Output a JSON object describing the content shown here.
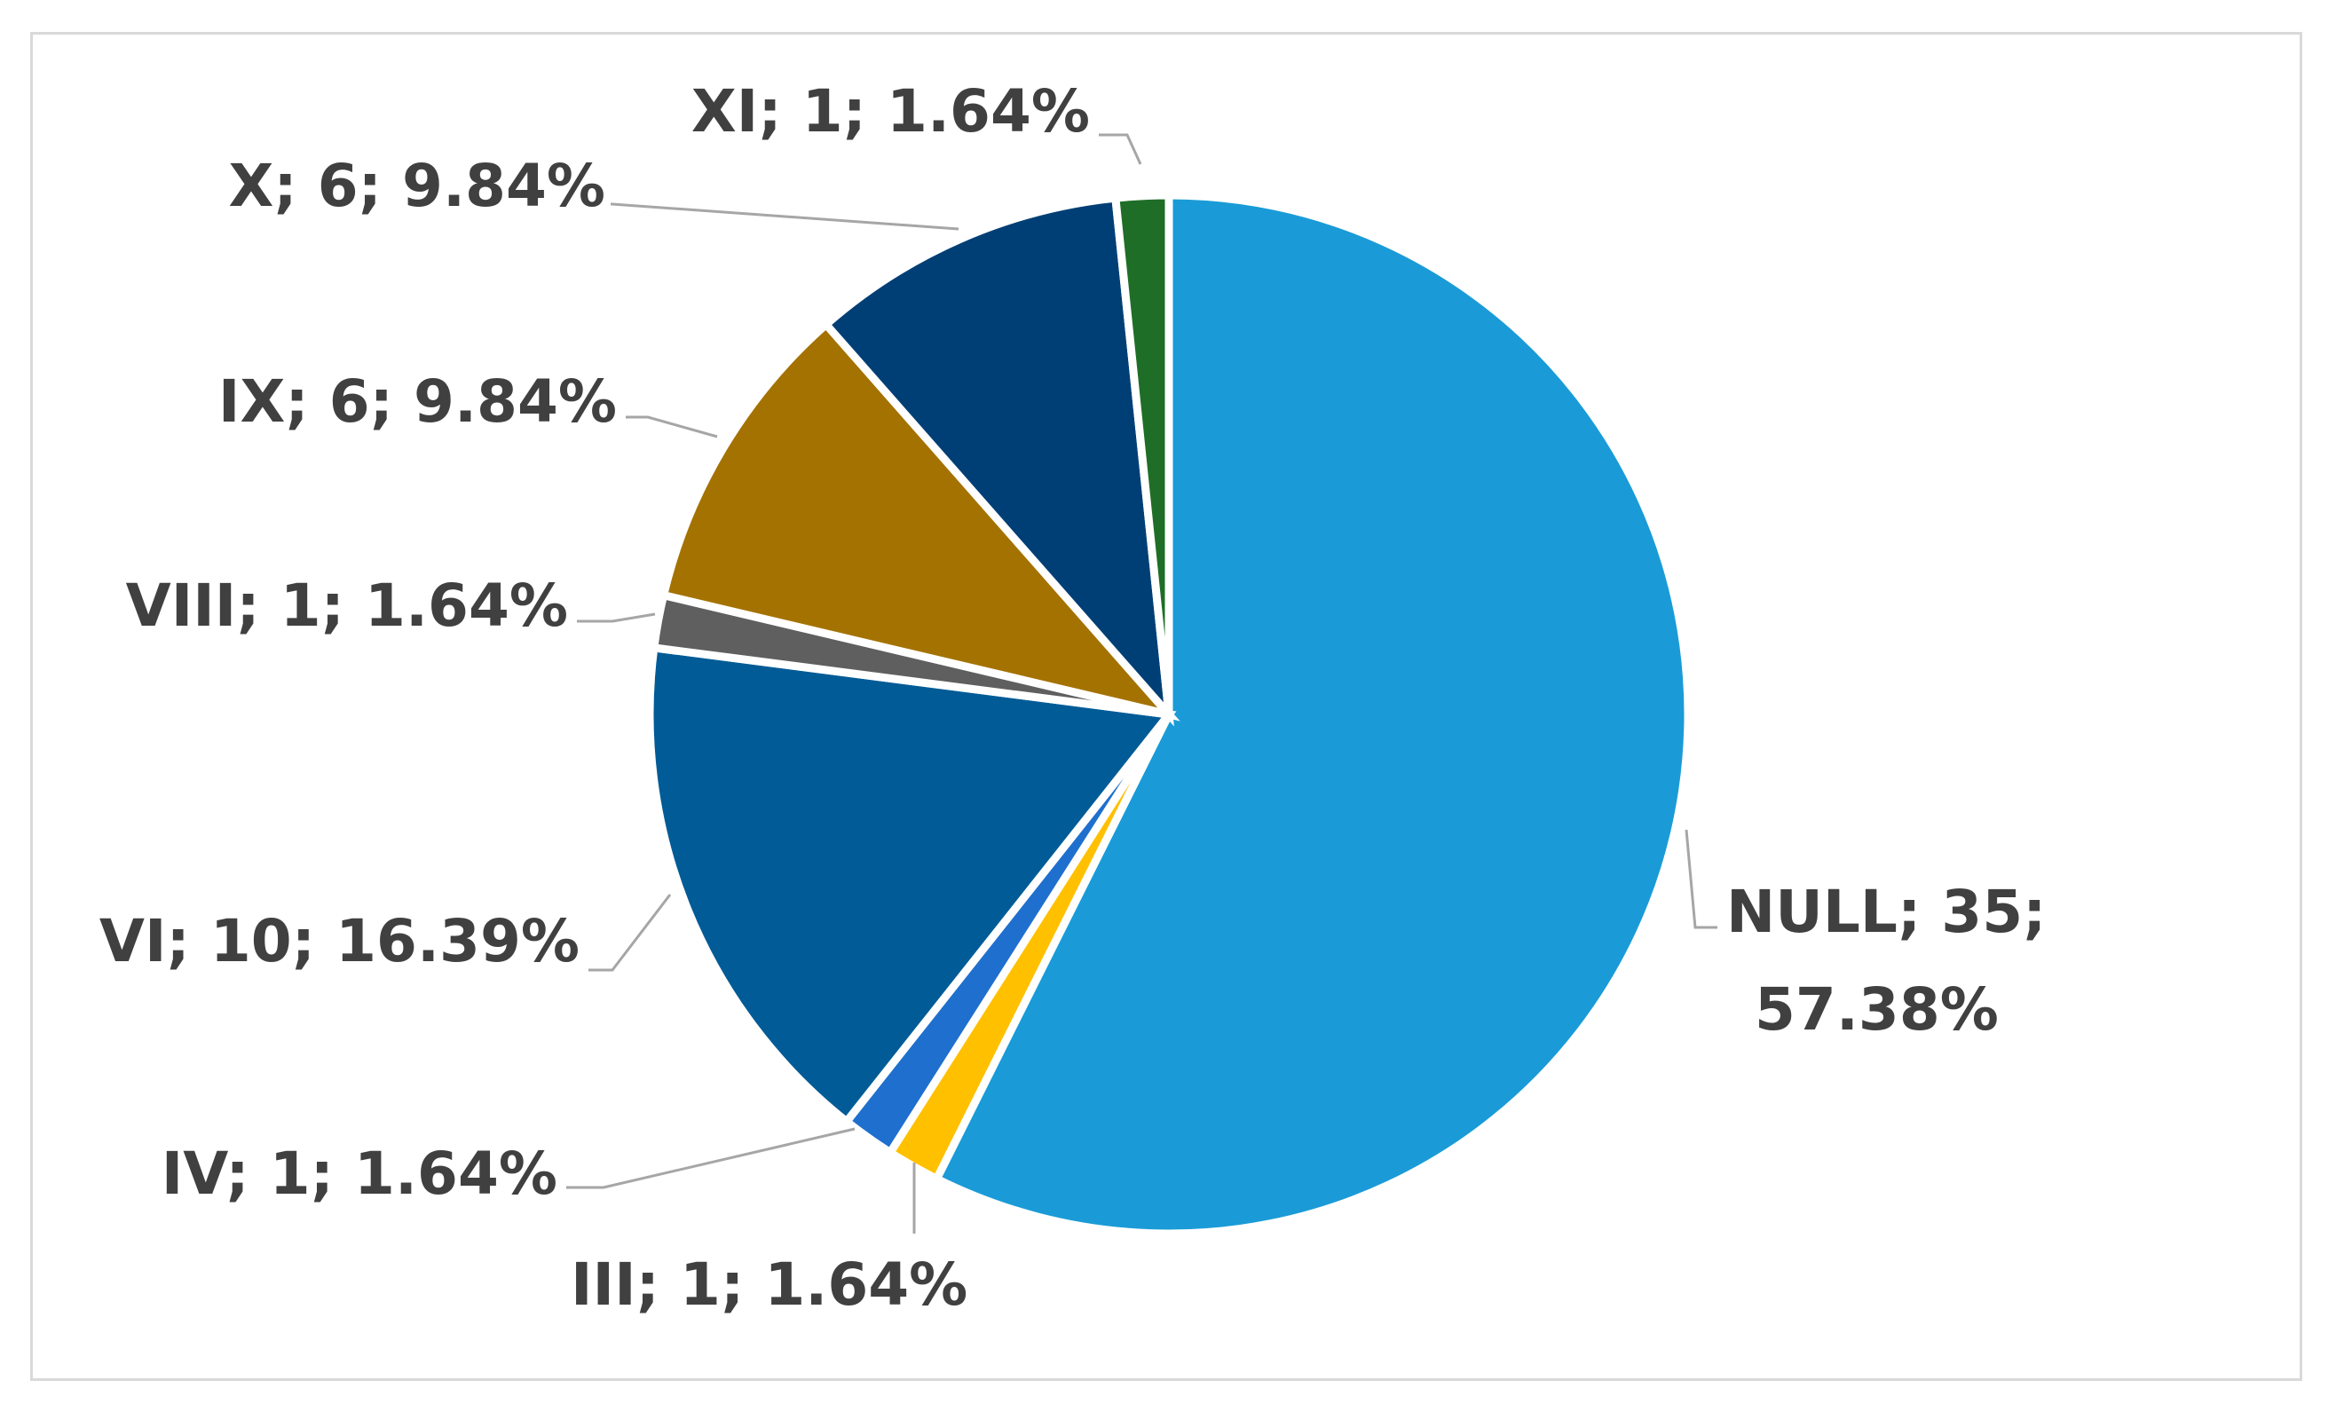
{
  "chart_data": {
    "type": "pie",
    "title": "",
    "slices": [
      {
        "name": "NULL",
        "value": 35,
        "percent": "57.38%",
        "color": "#1a9bd7",
        "label_lines": [
          "NULL; 35;",
          "57.38%"
        ]
      },
      {
        "name": "III",
        "value": 1,
        "percent": "1.64%",
        "color": "#ffc000",
        "label_lines": [
          "III; 1; 1.64%"
        ]
      },
      {
        "name": "IV",
        "value": 1,
        "percent": "1.64%",
        "color": "#1f6fce",
        "label_lines": [
          "IV; 1; 1.64%"
        ]
      },
      {
        "name": "VI",
        "value": 10,
        "percent": "16.39%",
        "color": "#005b96",
        "label_lines": [
          "VI; 10; 16.39%"
        ]
      },
      {
        "name": "VIII",
        "value": 1,
        "percent": "1.64%",
        "color": "#5f5f5f",
        "label_lines": [
          "VIII; 1; 1.64%"
        ]
      },
      {
        "name": "IX",
        "value": 6,
        "percent": "9.84%",
        "color": "#a47200",
        "label_lines": [
          "IX; 6; 9.84%"
        ]
      },
      {
        "name": "X",
        "value": 6,
        "percent": "9.84%",
        "color": "#003f75",
        "label_lines": [
          "X; 6; 9.84%"
        ]
      },
      {
        "name": "XI",
        "value": 1,
        "percent": "1.64%",
        "color": "#1f6e27",
        "label_lines": [
          "XI; 1; 1.64%"
        ]
      }
    ],
    "start_angle": "12 o'clock",
    "direction": "clockwise",
    "legend": "none",
    "labels": "outside with leader lines"
  }
}
